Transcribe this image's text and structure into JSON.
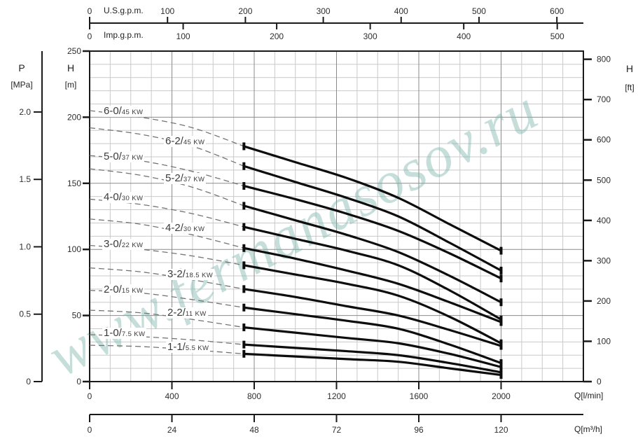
{
  "watermark": {
    "text": "www.fermanasosov.ru",
    "color": "#7EB5AE",
    "opacity": 0.45,
    "angle_deg": -28
  },
  "colors": {
    "grid_minor": "#c9c9c9",
    "grid_major": "#8b8b8b",
    "border": "#1a1a1a",
    "curve_solid": "#0d0d0d",
    "curve_dashed": "#747474",
    "tick_text": "#2e2e2e",
    "curve_label_text": "#3a3a3a"
  },
  "chart_data": {
    "type": "line",
    "title": "",
    "xlabel": "Q[l/min]",
    "ylabel": "H [m]",
    "x_range_l_min": [
      0,
      2400
    ],
    "grid": {
      "minor_step_l_min": 100,
      "major_step_l_min": 400,
      "minor_step_m": 10,
      "major_step_m": 50
    },
    "axes": {
      "top_us": {
        "name": "U.S.g.p.m.",
        "ticks": [
          0,
          100,
          200,
          300,
          400,
          500,
          600
        ],
        "liters_per_unit": 3.7854
      },
      "top_imp": {
        "name": "Imp.g.p.m.",
        "ticks": [
          0,
          100,
          200,
          300,
          400,
          500
        ],
        "liters_per_unit": 4.5461
      },
      "bottom_lmin": {
        "name": "Q[l/min]",
        "ticks": [
          0,
          400,
          800,
          1200,
          1600,
          2000
        ],
        "liters_per_unit": 1
      },
      "bottom_m3h": {
        "name": "Q[m³/h]",
        "ticks": [
          0,
          24,
          48,
          72,
          96,
          120
        ],
        "liters_per_unit": 16.6667
      },
      "left_head_m": {
        "title": "H",
        "unit": "[m]",
        "ticks": [
          0,
          50,
          100,
          150,
          200,
          250
        ],
        "range": [
          0,
          250
        ]
      },
      "left_pressure_mpa": {
        "title": "P",
        "unit": "[MPa]",
        "tick_values": [
          0,
          0.5,
          1.0,
          1.5,
          2.0
        ],
        "tick_labels": [
          "0",
          "0.5",
          "1.0",
          "1.5",
          "2.0"
        ],
        "meters_per_unit": 101.97
      },
      "right_head_ft": {
        "title": "H",
        "unit": "[ft]",
        "ticks": [
          0,
          100,
          200,
          300,
          400,
          500,
          600,
          700,
          800
        ],
        "meters_per_unit": 0.3048
      }
    },
    "series": [
      {
        "id": "6-0",
        "label_big": "6-0/",
        "label_small": "45 KW",
        "label_xy": [
          146,
          160
        ],
        "dashed": [
          [
            0,
            205
          ],
          [
            250,
            200
          ],
          [
            500,
            192
          ],
          [
            750,
            178
          ]
        ],
        "solid": [
          [
            750,
            178
          ],
          [
            1000,
            166
          ],
          [
            1250,
            154
          ],
          [
            1500,
            139
          ],
          [
            1750,
            119
          ],
          [
            2000,
            99
          ]
        ]
      },
      {
        "id": "6-2",
        "label_big": "6-2/",
        "label_small": "45 KW",
        "label_xy": [
          234,
          203
        ],
        "dashed": [
          [
            0,
            192
          ],
          [
            250,
            187
          ],
          [
            500,
            178
          ],
          [
            750,
            163
          ]
        ],
        "solid": [
          [
            750,
            163
          ],
          [
            1000,
            151
          ],
          [
            1250,
            139
          ],
          [
            1500,
            125
          ],
          [
            1750,
            105
          ],
          [
            2000,
            84
          ]
        ]
      },
      {
        "id": "5-0",
        "label_big": "5-0/",
        "label_small": "37 KW",
        "label_xy": [
          146,
          225
        ],
        "dashed": [
          [
            0,
            171
          ],
          [
            250,
            167
          ],
          [
            500,
            159
          ],
          [
            750,
            148
          ]
        ],
        "solid": [
          [
            750,
            148
          ],
          [
            1000,
            138
          ],
          [
            1250,
            127
          ],
          [
            1500,
            114
          ],
          [
            1750,
            97
          ],
          [
            2000,
            78
          ]
        ]
      },
      {
        "id": "5-2",
        "label_big": "5-2/",
        "label_small": "37 KW",
        "label_xy": [
          234,
          256
        ],
        "dashed": [
          [
            0,
            161
          ],
          [
            250,
            156
          ],
          [
            500,
            147
          ],
          [
            750,
            133
          ]
        ],
        "solid": [
          [
            750,
            133
          ],
          [
            1000,
            122
          ],
          [
            1250,
            111
          ],
          [
            1500,
            98
          ],
          [
            1750,
            80
          ],
          [
            2000,
            60
          ]
        ]
      },
      {
        "id": "4-0",
        "label_big": "4-0/",
        "label_small": "30 KW",
        "label_xy": [
          146,
          283
        ],
        "dashed": [
          [
            0,
            138
          ],
          [
            250,
            134
          ],
          [
            500,
            127
          ],
          [
            750,
            117
          ]
        ],
        "solid": [
          [
            750,
            117
          ],
          [
            1000,
            108
          ],
          [
            1250,
            99
          ],
          [
            1500,
            88
          ],
          [
            1750,
            69
          ],
          [
            2000,
            47
          ]
        ]
      },
      {
        "id": "4-2",
        "label_big": "4-2/",
        "label_small": "30 KW",
        "label_xy": [
          234,
          327
        ],
        "dashed": [
          [
            0,
            123
          ],
          [
            250,
            119
          ],
          [
            500,
            111
          ],
          [
            750,
            101
          ]
        ],
        "solid": [
          [
            750,
            101
          ],
          [
            1000,
            93
          ],
          [
            1250,
            84
          ],
          [
            1500,
            74
          ],
          [
            1750,
            60
          ],
          [
            2000,
            45
          ]
        ]
      },
      {
        "id": "3-0",
        "label_big": "3-0/",
        "label_small": "22 KW",
        "label_xy": [
          146,
          350
        ],
        "dashed": [
          [
            0,
            103
          ],
          [
            250,
            100
          ],
          [
            500,
            95
          ],
          [
            750,
            88
          ]
        ],
        "solid": [
          [
            750,
            88
          ],
          [
            1000,
            81
          ],
          [
            1250,
            74
          ],
          [
            1500,
            65
          ],
          [
            1750,
            49
          ],
          [
            2000,
            29
          ]
        ]
      },
      {
        "id": "3-2",
        "label_big": "3-2/",
        "label_small": "18.5 KW",
        "label_xy": [
          237,
          393
        ],
        "dashed": [
          [
            0,
            86
          ],
          [
            250,
            83
          ],
          [
            500,
            77
          ],
          [
            750,
            70
          ]
        ],
        "solid": [
          [
            750,
            70
          ],
          [
            1000,
            64
          ],
          [
            1250,
            57
          ],
          [
            1500,
            50
          ],
          [
            1750,
            39
          ],
          [
            2000,
            27
          ]
        ]
      },
      {
        "id": "2-0",
        "label_big": "2-0/",
        "label_small": "15 KW",
        "label_xy": [
          146,
          415
        ],
        "dashed": [
          [
            0,
            69
          ],
          [
            250,
            67
          ],
          [
            500,
            62
          ],
          [
            750,
            56
          ]
        ],
        "solid": [
          [
            750,
            56
          ],
          [
            1000,
            51
          ],
          [
            1250,
            46
          ],
          [
            1500,
            40
          ],
          [
            1750,
            28
          ],
          [
            2000,
            14
          ]
        ]
      },
      {
        "id": "2-2",
        "label_big": "2-2/",
        "label_small": "11 KW",
        "label_xy": [
          237,
          448
        ],
        "dashed": [
          [
            0,
            54
          ],
          [
            250,
            52
          ],
          [
            500,
            47
          ],
          [
            750,
            41
          ]
        ],
        "solid": [
          [
            750,
            41
          ],
          [
            1000,
            37
          ],
          [
            1250,
            33
          ],
          [
            1500,
            29
          ],
          [
            1750,
            21
          ],
          [
            2000,
            11
          ]
        ]
      },
      {
        "id": "1-0",
        "label_big": "1-0/",
        "label_small": "7.5 KW",
        "label_xy": [
          146,
          477
        ],
        "dashed": [
          [
            0,
            35.5
          ],
          [
            250,
            34
          ],
          [
            500,
            31.5
          ],
          [
            750,
            28
          ]
        ],
        "solid": [
          [
            750,
            28
          ],
          [
            1000,
            25.5
          ],
          [
            1250,
            23
          ],
          [
            1500,
            20
          ],
          [
            1750,
            14
          ],
          [
            2000,
            7
          ]
        ]
      },
      {
        "id": "1-1",
        "label_big": "1-1/",
        "label_small": "5.5 KW",
        "label_xy": [
          237,
          497
        ],
        "dashed": [
          [
            0,
            27.5
          ],
          [
            250,
            26.5
          ],
          [
            500,
            24
          ],
          [
            750,
            21
          ]
        ],
        "solid": [
          [
            750,
            21
          ],
          [
            1000,
            19
          ],
          [
            1250,
            17
          ],
          [
            1500,
            15
          ],
          [
            1750,
            10
          ],
          [
            2000,
            5
          ]
        ]
      }
    ]
  }
}
